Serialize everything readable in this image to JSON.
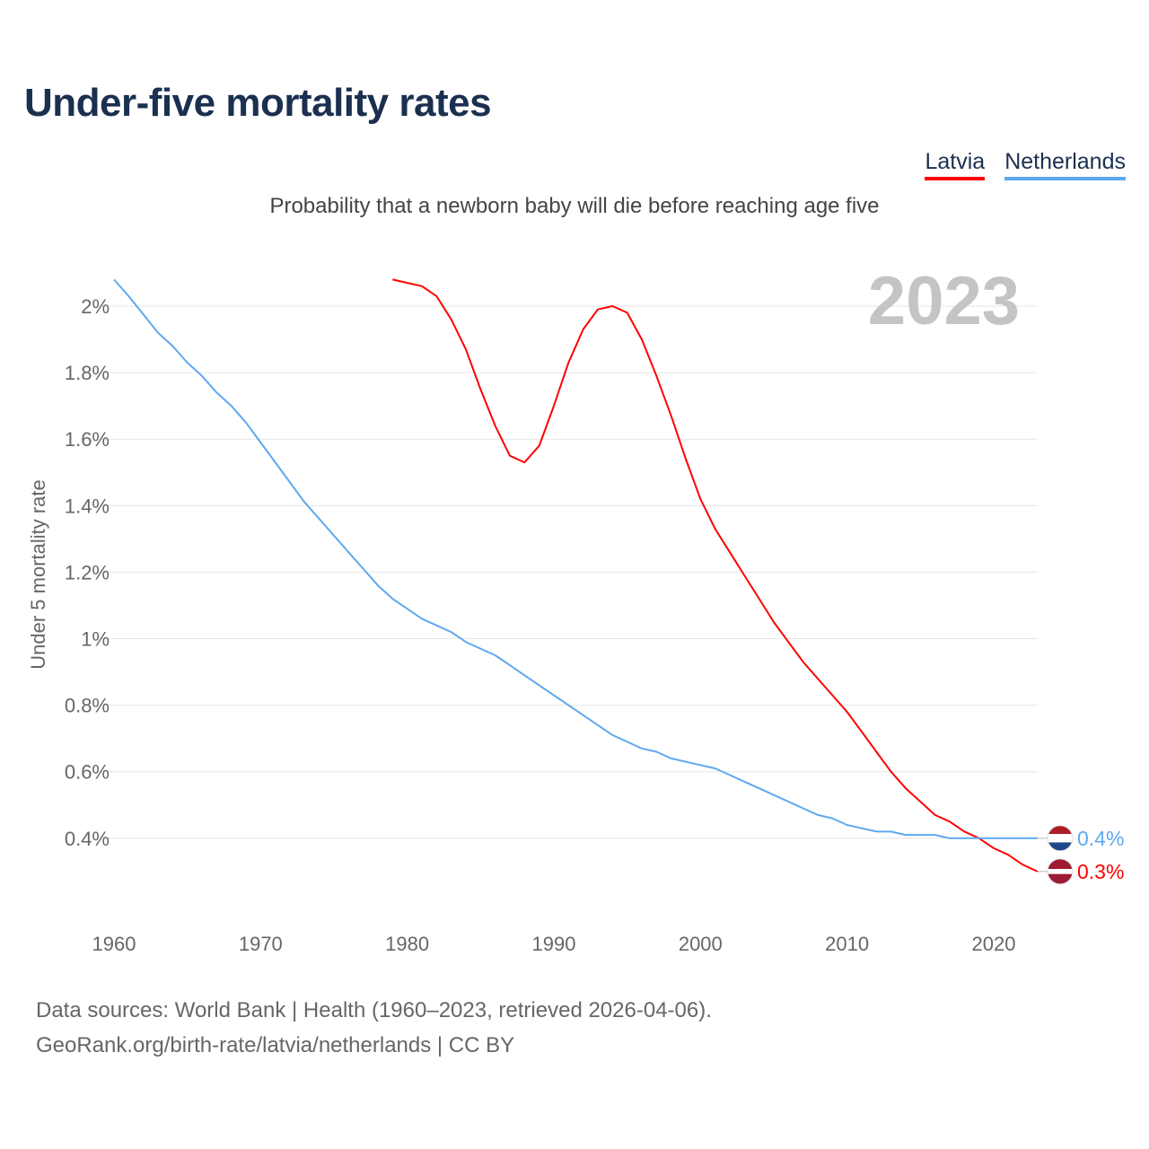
{
  "title": "Under-five mortality rates",
  "subtitle": "Probability that a newborn baby will die before reaching age five",
  "source_line1": "Data sources: World Bank | Health (1960–2023, retrieved 2026-04-06).",
  "source_line2": "GeoRank.org/birth-rate/latvia/netherlands | CC BY",
  "chart_data": {
    "type": "line",
    "title": "Under-five mortality rates",
    "ylabel": "Under 5 mortality rate",
    "xlabel": "",
    "year_label": "2023",
    "xlim": [
      1960,
      2023
    ],
    "ylim": [
      0.2,
      2.1
    ],
    "x_ticks": [
      1960,
      1970,
      1980,
      1990,
      2000,
      2010,
      2020
    ],
    "y_ticks": [
      0.4,
      0.6,
      0.8,
      1,
      1.2,
      1.4,
      1.6,
      1.8,
      2
    ],
    "y_tick_labels": [
      "0.4%",
      "0.6%",
      "0.8%",
      "1%",
      "1.2%",
      "1.4%",
      "1.6%",
      "1.8%",
      "2%"
    ],
    "grid": true,
    "legend_position": "top-right",
    "series": [
      {
        "name": "Latvia",
        "color": "#ff0000",
        "end_label": "0.3%",
        "flag": "latvia-flag",
        "start_year": 1979,
        "values": [
          2.08,
          2.07,
          2.06,
          2.03,
          1.96,
          1.87,
          1.75,
          1.64,
          1.55,
          1.53,
          1.58,
          1.7,
          1.83,
          1.93,
          1.99,
          2.0,
          1.98,
          1.9,
          1.79,
          1.67,
          1.54,
          1.42,
          1.33,
          1.26,
          1.19,
          1.12,
          1.05,
          0.99,
          0.93,
          0.88,
          0.83,
          0.78,
          0.72,
          0.66,
          0.6,
          0.55,
          0.51,
          0.47,
          0.45,
          0.42,
          0.4,
          0.37,
          0.35,
          0.32,
          0.3
        ]
      },
      {
        "name": "Netherlands",
        "color": "#5ea8f0",
        "end_label": "0.4%",
        "flag": "netherlands-flag",
        "start_year": 1960,
        "values": [
          2.08,
          2.03,
          1.975,
          1.92,
          1.88,
          1.83,
          1.79,
          1.74,
          1.7,
          1.65,
          1.59,
          1.53,
          1.47,
          1.41,
          1.36,
          1.31,
          1.26,
          1.21,
          1.16,
          1.12,
          1.09,
          1.06,
          1.04,
          1.02,
          0.99,
          0.97,
          0.95,
          0.92,
          0.89,
          0.86,
          0.83,
          0.8,
          0.77,
          0.74,
          0.71,
          0.69,
          0.67,
          0.66,
          0.64,
          0.63,
          0.62,
          0.61,
          0.59,
          0.57,
          0.55,
          0.53,
          0.51,
          0.49,
          0.47,
          0.46,
          0.44,
          0.43,
          0.42,
          0.42,
          0.41,
          0.41,
          0.41,
          0.4,
          0.4,
          0.4,
          0.4,
          0.4,
          0.4,
          0.4
        ]
      }
    ]
  }
}
